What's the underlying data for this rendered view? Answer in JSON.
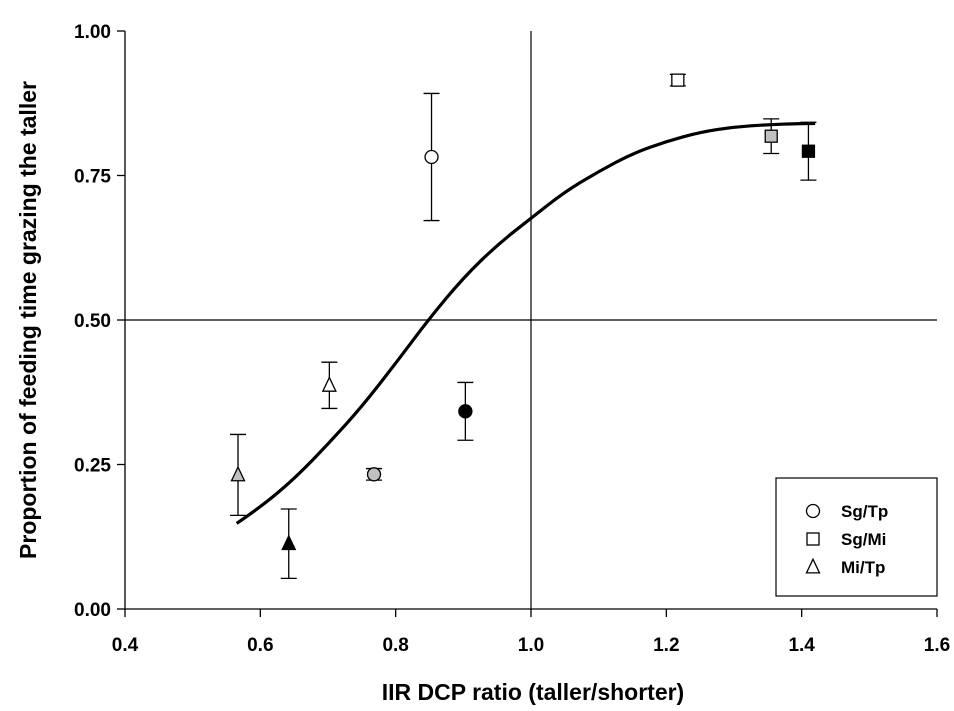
{
  "chart_data": {
    "type": "scatter",
    "xlabel": "IIR DCP ratio (taller/shorter)",
    "ylabel": "Proportion of feeding time grazing the taller",
    "xlim": [
      0.4,
      1.6
    ],
    "ylim": [
      0.0,
      1.0
    ],
    "xticks": [
      "0.4",
      "0.6",
      "0.8",
      "1.0",
      "1.2",
      "1.4",
      "1.6"
    ],
    "yticks": [
      "0.00",
      "0.25",
      "0.50",
      "0.75",
      "1.00"
    ],
    "grid": false,
    "reference_lines": {
      "x": 1.0,
      "y": 0.5
    },
    "legend_position": "bottom-right",
    "series": [
      {
        "name": "Sg/Tp",
        "marker": "circle",
        "points": [
          {
            "x": 0.853,
            "y": 0.782,
            "err": 0.11,
            "fill": "#ffffff"
          },
          {
            "x": 0.768,
            "y": 0.233,
            "err": 0.01,
            "fill": "#c0c0c0"
          },
          {
            "x": 0.903,
            "y": 0.342,
            "err": 0.05,
            "fill": "#000000"
          }
        ]
      },
      {
        "name": "Sg/Mi",
        "marker": "square",
        "points": [
          {
            "x": 1.217,
            "y": 0.915,
            "err": 0.01,
            "fill": "#ffffff"
          },
          {
            "x": 1.355,
            "y": 0.818,
            "err": 0.03,
            "fill": "#c0c0c0"
          },
          {
            "x": 1.41,
            "y": 0.792,
            "err": 0.05,
            "fill": "#000000"
          }
        ]
      },
      {
        "name": "Mi/Tp",
        "marker": "triangle",
        "points": [
          {
            "x": 0.702,
            "y": 0.387,
            "err": 0.04,
            "fill": "#ffffff"
          },
          {
            "x": 0.567,
            "y": 0.232,
            "err": 0.07,
            "fill": "#c0c0c0"
          },
          {
            "x": 0.642,
            "y": 0.113,
            "err": 0.06,
            "fill": "#000000"
          }
        ]
      }
    ],
    "fit_curve": {
      "x": [
        0.565,
        0.6,
        0.65,
        0.7,
        0.75,
        0.8,
        0.85,
        0.9,
        0.95,
        1.0,
        1.05,
        1.1,
        1.15,
        1.2,
        1.25,
        1.3,
        1.35,
        1.4,
        1.42
      ],
      "y": [
        0.148,
        0.176,
        0.225,
        0.285,
        0.35,
        0.425,
        0.503,
        0.573,
        0.63,
        0.676,
        0.722,
        0.757,
        0.788,
        0.809,
        0.825,
        0.834,
        0.838,
        0.84,
        0.84
      ]
    }
  }
}
